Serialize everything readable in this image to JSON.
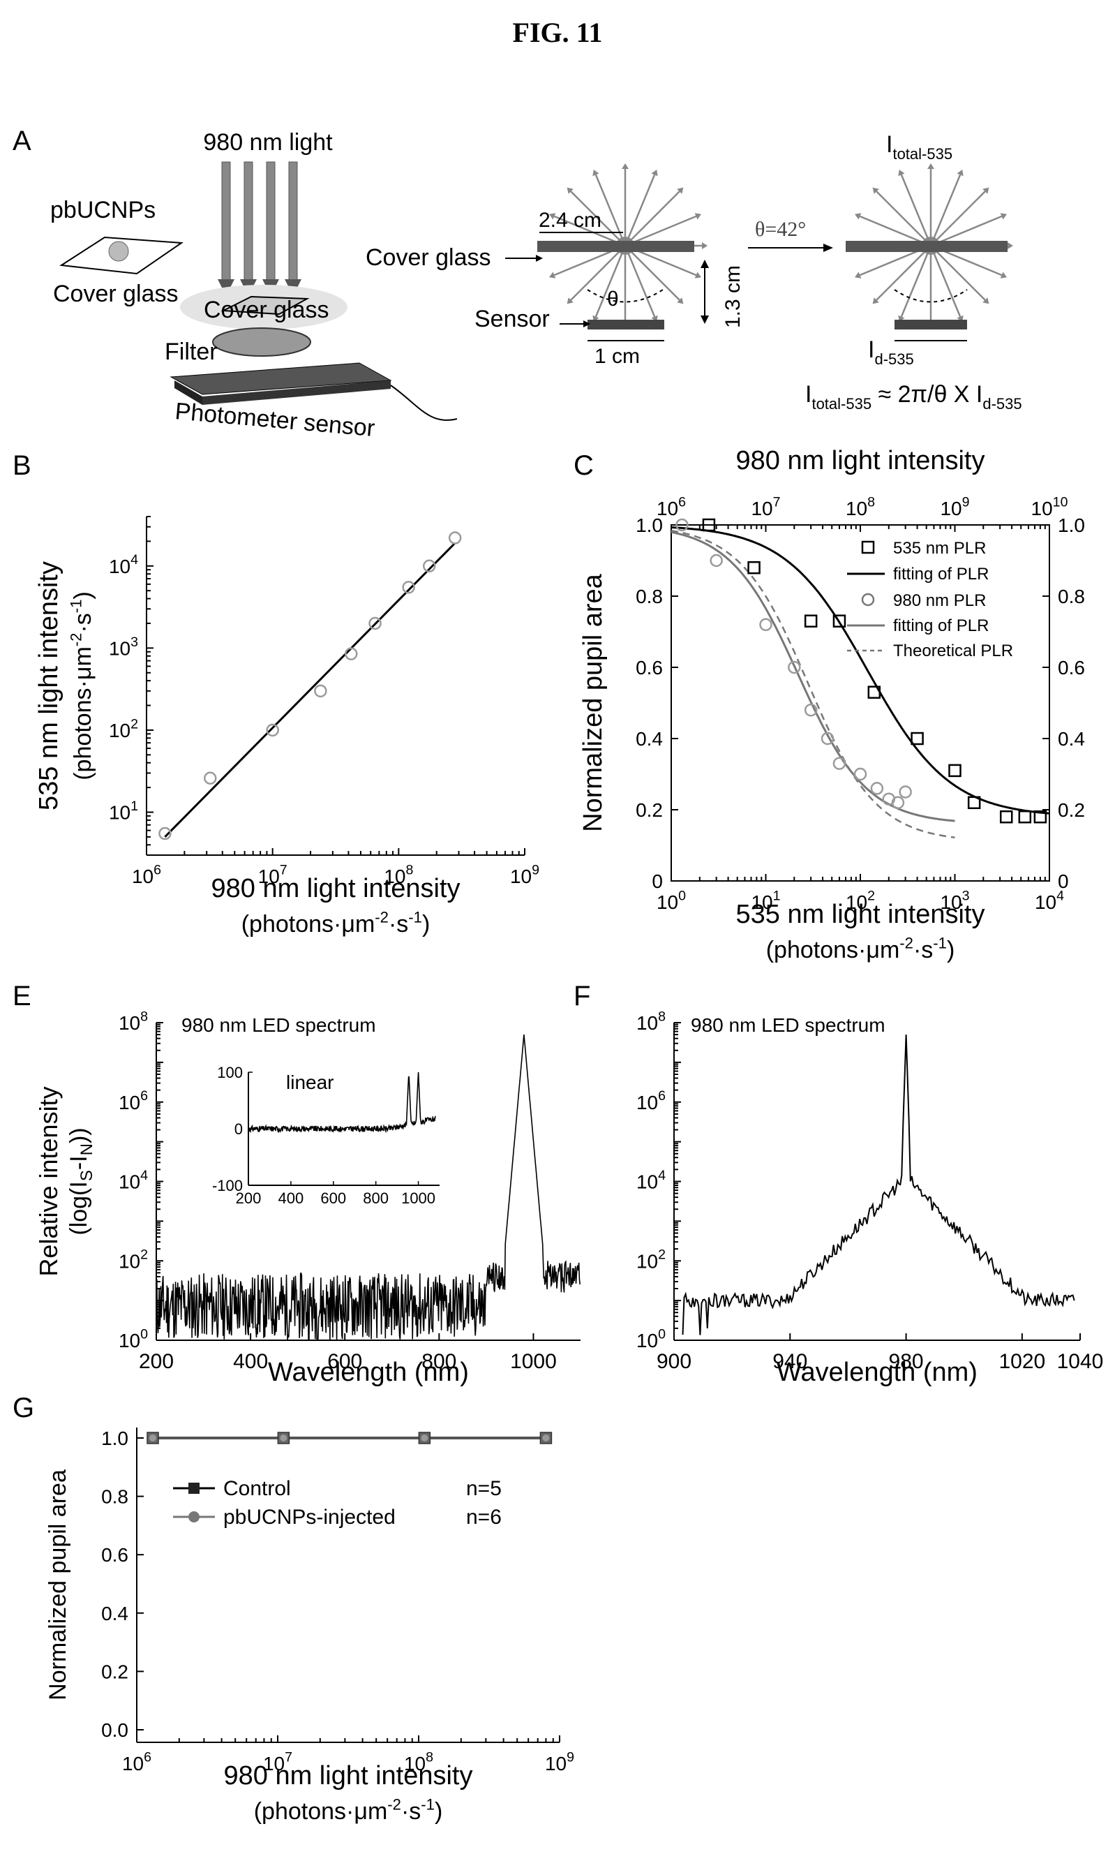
{
  "figure_title": "FIG. 11",
  "colors": {
    "black": "#000000",
    "gray": "#777777",
    "light_gray": "#9a9a9a"
  },
  "panel_labels": {
    "A": "A",
    "B": "B",
    "C": "C",
    "E": "E",
    "F": "F",
    "G": "G"
  },
  "panel_a": {
    "light_label": "980 nm light",
    "particle_label": "pbUCNPs",
    "cover_glass_left": "Cover glass",
    "cover_glass_middle": "Cover glass",
    "filter_label": "Filter",
    "sensor_device_label": "Photometer sensor",
    "width_label": "2.4 cm",
    "cover_glass_label": "Cover glass",
    "height_label": "1.3 cm",
    "theta_symbol": "θ",
    "sensor_label": "Sensor",
    "sensor_width_label": "1 cm",
    "angle_label": "θ=42°",
    "i_total_main": "I",
    "i_total_sub": "total-535",
    "i_d_main": "I",
    "i_d_sub": "d-535",
    "formula_i1": "I",
    "formula_sub1": "total-535",
    "formula_mid": " ≈ 2π/θ X I",
    "formula_sub2": "d-535"
  },
  "chart_data": [
    {
      "panel": "B",
      "type": "scatter",
      "xlabel": "980 nm light intensity",
      "xunit_pre": "(photons·μm",
      "xunit_sup1": "-2",
      "xunit_mid": "·s",
      "xunit_sup2": "-1",
      "xunit_post": ")",
      "ylabel": "535 nm light intensity",
      "yunit_pre": "(photons·μm",
      "yunit_sup1": "-2",
      "yunit_mid": "·s",
      "yunit_sup2": "-1",
      "yunit_post": ")",
      "xscale": "log",
      "yscale": "log",
      "xlim": [
        1000000,
        1000000000
      ],
      "ylim": [
        3,
        40000
      ],
      "xticks": [
        {
          "base": "10",
          "exp": "6"
        },
        {
          "base": "10",
          "exp": "7"
        },
        {
          "base": "10",
          "exp": "8"
        },
        {
          "base": "10",
          "exp": "9"
        }
      ],
      "yticks": [
        {
          "base": "10",
          "exp": "1"
        },
        {
          "base": "10",
          "exp": "2"
        },
        {
          "base": "10",
          "exp": "3"
        },
        {
          "base": "10",
          "exp": "4"
        }
      ],
      "points": {
        "x": [
          1400000,
          3200000,
          10000000,
          24000000,
          42000000,
          65000000,
          120000000,
          175000000,
          280000000
        ],
        "y": [
          5.5,
          26,
          100,
          300,
          850,
          2000,
          5500,
          10000,
          22000
        ]
      },
      "fit": {
        "x": [
          1400000,
          280000000
        ],
        "y": [
          5,
          19000
        ]
      }
    },
    {
      "panel": "C",
      "type": "line",
      "xlabel": "535 nm light intensity",
      "xunit_pre": "(photons·μm",
      "xunit_sup1": "-2",
      "xunit_mid": "·s",
      "xunit_sup2": "-1",
      "xunit_post": ")",
      "x2label": "980 nm light intensity",
      "ylabel": "Normalized pupil area",
      "xscale": "log",
      "xlim": [
        1,
        10000
      ],
      "x2lim": [
        1000000,
        10000000000
      ],
      "ylim": [
        0,
        1.0
      ],
      "xticks": [
        {
          "base": "10",
          "exp": "0"
        },
        {
          "base": "10",
          "exp": "1"
        },
        {
          "base": "10",
          "exp": "2"
        },
        {
          "base": "10",
          "exp": "3"
        },
        {
          "base": "10",
          "exp": "4"
        }
      ],
      "x2ticks": [
        {
          "base": "10",
          "exp": "6"
        },
        {
          "base": "10",
          "exp": "7"
        },
        {
          "base": "10",
          "exp": "8"
        },
        {
          "base": "10",
          "exp": "9"
        },
        {
          "base": "10",
          "exp": "10"
        }
      ],
      "yticks": [
        "0",
        "0.2",
        "0.4",
        "0.6",
        "0.8",
        "1.0"
      ],
      "y2ticks": [
        "0",
        "0.2",
        "0.4",
        "0.6",
        "0.8",
        "1.0"
      ],
      "legend_position": "top-right",
      "series": [
        {
          "name": "535 nm PLR",
          "marker": "square",
          "x": [
            2.5,
            7.5,
            30,
            60,
            140,
            400,
            1000,
            1600,
            3500,
            5500,
            8000
          ],
          "y": [
            1.0,
            0.88,
            0.73,
            0.73,
            0.53,
            0.4,
            0.31,
            0.22,
            0.18,
            0.18,
            0.18
          ]
        },
        {
          "name": "fitting of PLR",
          "curve": "sigmoid-535",
          "style": "solid-black"
        },
        {
          "name": "980 nm PLR",
          "marker": "circle",
          "x": [
            1.3,
            3,
            10,
            20,
            30,
            45,
            60,
            100,
            150,
            200,
            250,
            300
          ],
          "y": [
            1.0,
            0.9,
            0.72,
            0.6,
            0.48,
            0.4,
            0.33,
            0.3,
            0.26,
            0.23,
            0.22,
            0.25
          ]
        },
        {
          "name": "fitting of PLR",
          "curve": "sigmoid-980",
          "style": "solid-gray"
        },
        {
          "name": "Theoretical PLR",
          "curve": "sigmoid-theory",
          "style": "dashed-gray"
        }
      ]
    },
    {
      "panel": "E",
      "type": "line",
      "title": "980 nm LED spectrum",
      "xlabel": "Wavelength (nm)",
      "ylabel": "Relative intensity",
      "ylabel2_pre": "(log(I",
      "ylabel2_s": "S",
      "ylabel2_mid": "-I",
      "ylabel2_n": "N",
      "ylabel2_post": "))",
      "yscale": "log",
      "xlim": [
        200,
        1100
      ],
      "ylim": [
        1,
        100000000
      ],
      "xticks": [
        "200",
        "400",
        "600",
        "800",
        "1000"
      ],
      "yticks": [
        {
          "base": "10",
          "exp": "0"
        },
        {
          "base": "10",
          "exp": "2"
        },
        {
          "base": "10",
          "exp": "4"
        },
        {
          "base": "10",
          "exp": "6"
        },
        {
          "base": "10",
          "exp": "8"
        }
      ],
      "spectrum": {
        "peak_nm": 980,
        "peak_value": 50000000,
        "noise_floor": [
          1,
          100
        ]
      },
      "inset": {
        "label": "linear",
        "xlim": [
          200,
          1100
        ],
        "ylim": [
          -100,
          100
        ],
        "xticks": [
          "200",
          "400",
          "600",
          "800",
          "1000"
        ],
        "yticks": [
          "100",
          "0",
          "-100"
        ],
        "peaks_nm": [
          955,
          1000
        ],
        "peak_value": 100
      }
    },
    {
      "panel": "F",
      "type": "line",
      "title": "980 nm LED spectrum",
      "xlabel": "Wavelength (nm)",
      "yscale": "log",
      "xlim": [
        900,
        1040
      ],
      "ylim": [
        1,
        100000000
      ],
      "xticks": [
        "900",
        "940",
        "980",
        "1020",
        "1040"
      ],
      "yticks": [
        {
          "base": "10",
          "exp": "0"
        },
        {
          "base": "10",
          "exp": "2"
        },
        {
          "base": "10",
          "exp": "4"
        },
        {
          "base": "10",
          "exp": "6"
        },
        {
          "base": "10",
          "exp": "8"
        }
      ],
      "spectrum": {
        "peak_nm": 980,
        "peak_value": 50000000,
        "base_value": 10
      }
    },
    {
      "panel": "G",
      "type": "line",
      "xlabel": "980 nm light intensity",
      "xunit_pre": "(photons·μm",
      "xunit_sup1": "-2",
      "xunit_mid": "·s",
      "xunit_sup2": "-1",
      "xunit_post": ")",
      "ylabel": "Normalized pupil area",
      "xscale": "log",
      "xlim": [
        1000000,
        1000000000
      ],
      "ylim": [
        0,
        1.0
      ],
      "xticks": [
        {
          "base": "10",
          "exp": "6"
        },
        {
          "base": "10",
          "exp": "7"
        },
        {
          "base": "10",
          "exp": "8"
        },
        {
          "base": "10",
          "exp": "9"
        }
      ],
      "yticks": [
        "0.0",
        "0.2",
        "0.4",
        "0.6",
        "0.8",
        "1.0"
      ],
      "legend_position": "upper-left",
      "series": [
        {
          "name": "Control",
          "marker": "square",
          "n": "n=5",
          "x": [
            1300000,
            11000000,
            110000000,
            800000000
          ],
          "y": [
            1.0,
            1.0,
            1.0,
            1.0
          ]
        },
        {
          "name": "pbUCNPs-injected",
          "marker": "circle",
          "n": "n=6",
          "x": [
            1300000,
            11000000,
            110000000,
            800000000
          ],
          "y": [
            1.0,
            1.0,
            1.0,
            1.0
          ]
        }
      ]
    }
  ]
}
